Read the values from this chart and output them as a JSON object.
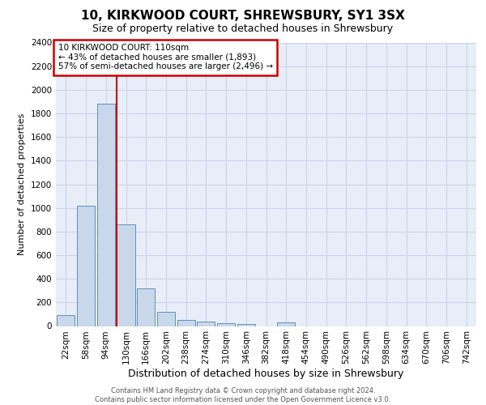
{
  "title1": "10, KIRKWOOD COURT, SHREWSBURY, SY1 3SX",
  "title2": "Size of property relative to detached houses in Shrewsbury",
  "xlabel": "Distribution of detached houses by size in Shrewsbury",
  "ylabel": "Number of detached properties",
  "footer1": "Contains HM Land Registry data © Crown copyright and database right 2024.",
  "footer2": "Contains public sector information licensed under the Open Government Licence v3.0.",
  "categories": [
    "22sqm",
    "58sqm",
    "94sqm",
    "130sqm",
    "166sqm",
    "202sqm",
    "238sqm",
    "274sqm",
    "310sqm",
    "346sqm",
    "382sqm",
    "418sqm",
    "454sqm",
    "490sqm",
    "526sqm",
    "562sqm",
    "598sqm",
    "634sqm",
    "670sqm",
    "706sqm",
    "742sqm"
  ],
  "values": [
    90,
    1020,
    1880,
    860,
    320,
    120,
    50,
    40,
    25,
    15,
    0,
    30,
    0,
    0,
    0,
    0,
    0,
    0,
    0,
    0,
    0
  ],
  "bar_color": "#c8d8ea",
  "bar_edge_color": "#6090b8",
  "red_line_index": 3,
  "property_label": "10 KIRKWOOD COURT: 110sqm",
  "annotation_line1": "← 43% of detached houses are smaller (1,893)",
  "annotation_line2": "57% of semi-detached houses are larger (2,496) →",
  "ylim": [
    0,
    2400
  ],
  "yticks": [
    0,
    200,
    400,
    600,
    800,
    1000,
    1200,
    1400,
    1600,
    1800,
    2000,
    2200,
    2400
  ],
  "bg_color": "#e8eef8",
  "grid_color": "#c8d4e8",
  "annotation_box_edge": "#cc0000",
  "title1_fontsize": 11,
  "title2_fontsize": 9,
  "ylabel_fontsize": 8,
  "xlabel_fontsize": 9,
  "tick_fontsize": 7.5,
  "annotation_fontsize": 7.5,
  "footer_fontsize": 6
}
